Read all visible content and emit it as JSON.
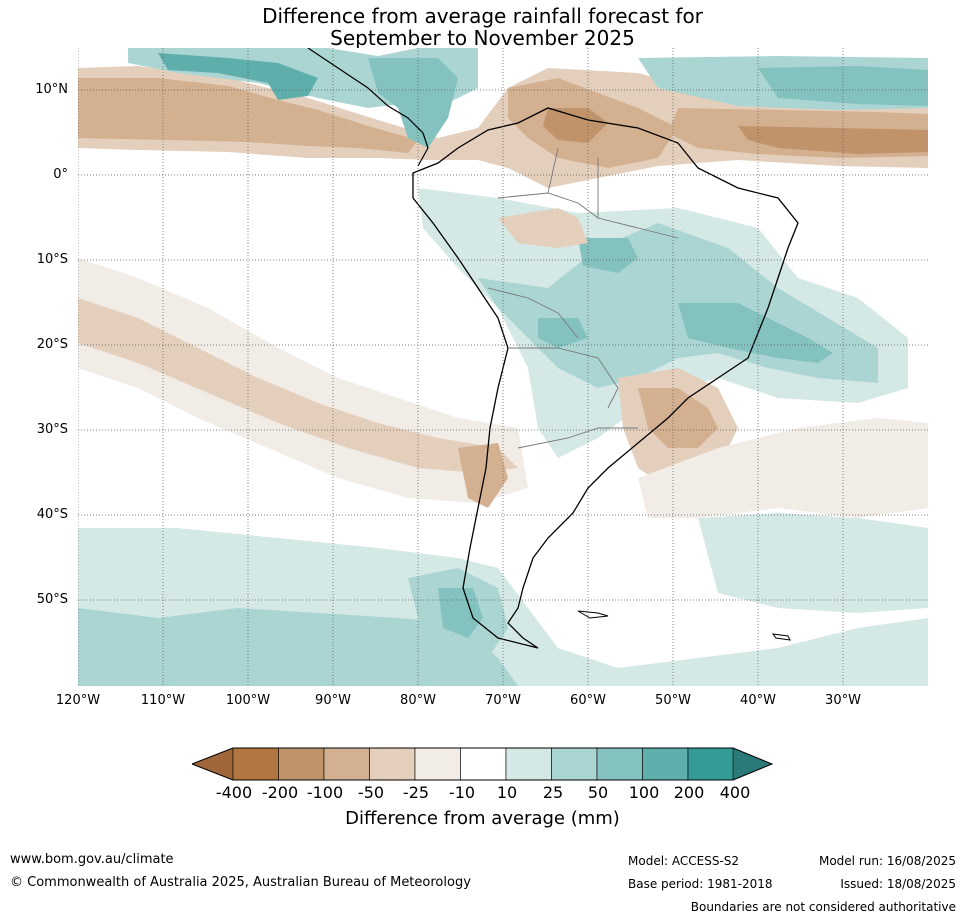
{
  "title": {
    "line1": "Difference from average rainfall forecast for",
    "line2": "September to November 2025"
  },
  "axes": {
    "lat_labels": [
      "10°N",
      "0°",
      "10°S",
      "20°S",
      "30°S",
      "40°S",
      "50°S"
    ],
    "lon_labels": [
      "120°W",
      "110°W",
      "100°W",
      "90°W",
      "80°W",
      "70°W",
      "60°W",
      "50°W",
      "40°W",
      "30°W"
    ]
  },
  "colorbar": {
    "labels": [
      "-400",
      "-200",
      "-100",
      "-50",
      "-25",
      "-10",
      "10",
      "25",
      "50",
      "100",
      "200",
      "400"
    ],
    "colors": [
      "#a0683a",
      "#b07840",
      "#c0936a",
      "#d3b090",
      "#e4cfbd",
      "#f1ece6",
      "#ffffff",
      "#d4e8e6",
      "#aad5d3",
      "#84c2bf",
      "#5eaeab",
      "#349b97",
      "#2a7b78"
    ],
    "title": "Difference from average (mm)"
  },
  "footer": {
    "website": "www.bom.gov.au/climate",
    "copyright": "© Commonwealth of Australia 2025, Australian Bureau of Meteorology",
    "model": "Model: ACCESS-S2",
    "base_period": "Base period: 1981-2018",
    "model_run": "Model run: 16/08/2025",
    "issued": "Issued: 18/08/2025",
    "disclaimer": "Boundaries are not considered authoritative"
  }
}
